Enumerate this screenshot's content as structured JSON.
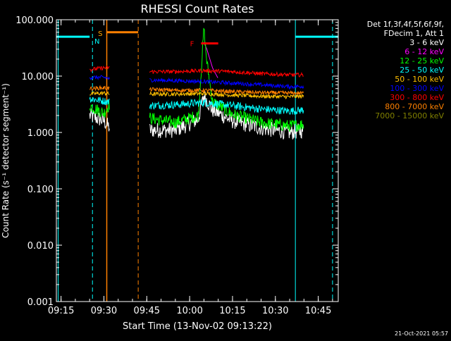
{
  "chart_data": {
    "type": "line",
    "title": "RHESSI Count Rates",
    "xlabel": "Start Time (13-Nov-02 09:13:22)",
    "ylabel": "Count Rate (s⁻¹ detector segment⁻¹)",
    "x_axis": {
      "unit": "time",
      "range": [
        "09:13:22",
        "10:52:00"
      ],
      "tick_labels": [
        "09:15",
        "09:30",
        "09:45",
        "10:00",
        "10:15",
        "10:30",
        "10:45"
      ]
    },
    "y_axis": {
      "scale": "log",
      "range": [
        0.001,
        100
      ],
      "tick_labels": [
        "0.001",
        "0.010",
        "0.100",
        "1.000",
        "10.000",
        "100.000"
      ]
    },
    "grid": false,
    "legend_position": "right",
    "legend_header": [
      "Det 1f,3f,4f,5f,6f,9f,",
      "FDecim 1, Att 1"
    ],
    "timestamp": "21-Oct-2021 05:57",
    "series": [
      {
        "name": "3 - 6 keV",
        "color": "#ffffff",
        "points": [
          [
            "09:25",
            2.0
          ],
          [
            "09:30",
            1.6
          ],
          [
            "09:32",
            1.2
          ],
          [
            "09:46",
            1.1
          ],
          [
            "09:55",
            1.1
          ],
          [
            "10:03",
            1.7
          ],
          [
            "10:05",
            4.5
          ],
          [
            "10:08",
            2.5
          ],
          [
            "10:15",
            1.6
          ],
          [
            "10:25",
            1.2
          ],
          [
            "10:35",
            1.0
          ],
          [
            "10:40",
            1.1
          ]
        ]
      },
      {
        "name": "6 - 12 keV",
        "color": "#ff00ff",
        "points": [
          [
            "10:05",
            40
          ],
          [
            "10:06",
            30
          ],
          [
            "10:08",
            14
          ],
          [
            "10:10",
            9
          ]
        ]
      },
      {
        "name": "12 - 25 keV",
        "color": "#00ff00",
        "points": [
          [
            "09:25",
            3.0
          ],
          [
            "09:30",
            2.2
          ],
          [
            "09:32",
            3.2
          ],
          [
            "09:46",
            1.8
          ],
          [
            "09:55",
            1.5
          ],
          [
            "10:03",
            2.0
          ],
          [
            "10:05",
            70
          ],
          [
            "10:06",
            18
          ],
          [
            "10:08",
            3.5
          ],
          [
            "10:15",
            2.1
          ],
          [
            "10:25",
            1.5
          ],
          [
            "10:35",
            1.3
          ],
          [
            "10:40",
            1.4
          ]
        ]
      },
      {
        "name": "25 - 50 keV",
        "color": "#00ffff",
        "points": [
          [
            "09:25",
            4.0
          ],
          [
            "09:30",
            3.6
          ],
          [
            "09:32",
            3.5
          ],
          [
            "09:46",
            3.0
          ],
          [
            "09:55",
            3.1
          ],
          [
            "10:05",
            3.4
          ],
          [
            "10:15",
            3.0
          ],
          [
            "10:25",
            2.6
          ],
          [
            "10:35",
            2.4
          ],
          [
            "10:40",
            2.5
          ]
        ]
      },
      {
        "name": "50 - 100 keV",
        "color": "#ffc000",
        "points": [
          [
            "09:25",
            4.8
          ],
          [
            "09:30",
            5.0
          ],
          [
            "09:32",
            4.8
          ],
          [
            "09:46",
            4.8
          ],
          [
            "09:55",
            4.8
          ],
          [
            "10:05",
            4.9
          ],
          [
            "10:15",
            4.6
          ],
          [
            "10:25",
            4.4
          ],
          [
            "10:35",
            4.3
          ],
          [
            "10:40",
            4.4
          ]
        ]
      },
      {
        "name": "100 - 300 keV",
        "color": "#0000ff",
        "points": [
          [
            "09:25",
            9.5
          ],
          [
            "09:30",
            9.5
          ],
          [
            "09:32",
            9.0
          ],
          [
            "09:46",
            8.5
          ],
          [
            "09:55",
            8.3
          ],
          [
            "10:05",
            8.0
          ],
          [
            "10:15",
            7.5
          ],
          [
            "10:25",
            7.0
          ],
          [
            "10:35",
            6.5
          ],
          [
            "10:40",
            6.6
          ]
        ]
      },
      {
        "name": "300 - 800 keV",
        "color": "#ff0000",
        "points": [
          [
            "09:25",
            13
          ],
          [
            "09:30",
            14
          ],
          [
            "09:32",
            14
          ],
          [
            "09:46",
            12
          ],
          [
            "09:55",
            12
          ],
          [
            "10:05",
            12.5
          ],
          [
            "10:15",
            12
          ],
          [
            "10:25",
            11
          ],
          [
            "10:35",
            10.5
          ],
          [
            "10:40",
            10.5
          ]
        ]
      },
      {
        "name": "800 - 7000 keV",
        "color": "#ff8000",
        "points": [
          [
            "09:25",
            6.0
          ],
          [
            "09:30",
            6.2
          ],
          [
            "09:32",
            6.0
          ],
          [
            "09:46",
            5.8
          ],
          [
            "09:55",
            5.6
          ],
          [
            "10:05",
            5.6
          ],
          [
            "10:15",
            5.3
          ],
          [
            "10:25",
            5.1
          ],
          [
            "10:35",
            5.0
          ],
          [
            "10:40",
            5.0
          ]
        ]
      },
      {
        "name": "7000 - 15000 keV",
        "color": "#808000",
        "points": []
      }
    ],
    "annotations": [
      {
        "label": "S",
        "color": "#ffa500",
        "time": "09:31"
      },
      {
        "label": "N",
        "color": "#00ffff",
        "time": "09:30"
      },
      {
        "label": "F",
        "color": "#ff0000",
        "time": "10:04"
      }
    ],
    "markers": {
      "night_bars": {
        "color": "#00ffff",
        "level": 50,
        "spans": [
          [
            "09:13:22",
            "09:25"
          ],
          [
            "10:37",
            "10:52:00"
          ]
        ]
      },
      "night_boundary_lines": {
        "color": "#00ffff",
        "solid": [
          "09:14",
          "10:37"
        ],
        "dashed": [
          "09:26",
          "10:50"
        ]
      },
      "saa_bar": {
        "color": "#ff8000",
        "level": 60,
        "span": [
          "09:31",
          "09:42"
        ]
      },
      "saa_boundary_lines": {
        "color": "#ff8000",
        "solid": [
          "09:31"
        ],
        "dashed": [
          "09:42"
        ]
      },
      "flare_bar": {
        "color": "#ff0000",
        "level": 38,
        "span": [
          "10:04",
          "10:10"
        ]
      }
    }
  }
}
